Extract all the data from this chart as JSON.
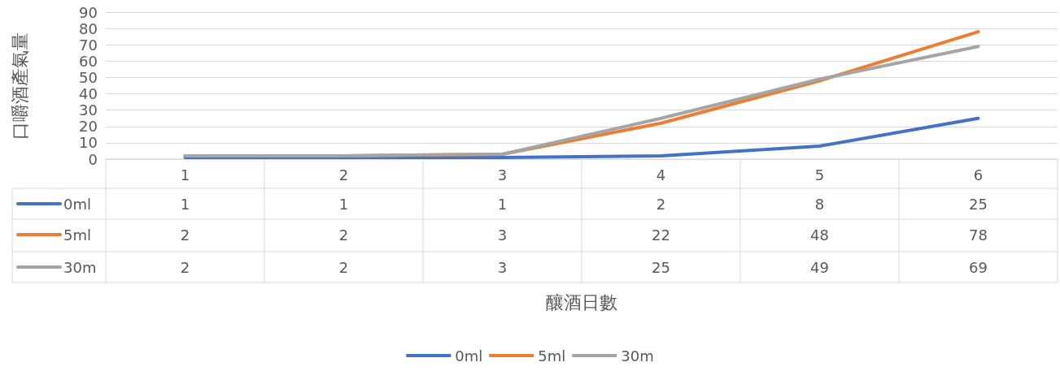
{
  "chart_data": {
    "type": "line",
    "annotations": [
      "釀酒日數"
    ],
    "ylabel": "口嚼酒產氣量",
    "categories": [
      "1",
      "2",
      "3",
      "4",
      "5",
      "6"
    ],
    "series": [
      {
        "name": "0ml",
        "color": "#4472c4",
        "values": [
          1,
          1,
          1,
          2,
          8,
          25
        ]
      },
      {
        "name": "5ml",
        "color": "#ed7d31",
        "values": [
          2,
          2,
          3,
          22,
          48,
          78
        ]
      },
      {
        "name": "30m",
        "color": "#a5a5a5",
        "values": [
          2,
          2,
          3,
          25,
          49,
          69
        ]
      }
    ],
    "ylim": [
      0,
      90
    ],
    "yticks": [
      0,
      10,
      20,
      30,
      40,
      50,
      60,
      70,
      80,
      90
    ],
    "grid": "y",
    "legend": "bottom",
    "marker": "none",
    "line_style": "solid",
    "data_labels": true
  }
}
